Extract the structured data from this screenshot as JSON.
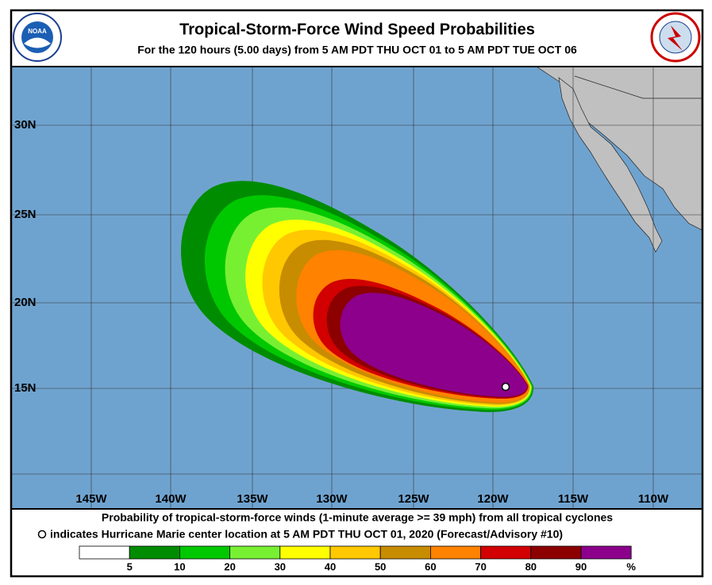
{
  "header": {
    "title": "Tropical-Storm-Force Wind Speed Probabilities",
    "subtitle": "For the 120 hours (5.00 days) from 5 AM PDT THU OCT 01 to 5 AM PDT TUE OCT 06",
    "left_logo": "NOAA"
  },
  "map": {
    "longitudes": [
      "145W",
      "140W",
      "135W",
      "130W",
      "125W",
      "120W",
      "115W",
      "110W"
    ],
    "latitudes": [
      "30N",
      "25N",
      "20N",
      "15N"
    ]
  },
  "caption": {
    "line1": "Probability of tropical-storm-force winds (1-minute average >= 39 mph) from all tropical cyclones",
    "line2": "indicates Hurricane Marie center location at 5 AM PDT THU OCT 01, 2020 (Forecast/Advisory #10)"
  },
  "legend": {
    "colors": [
      "#ffffff",
      "#008c00",
      "#00c800",
      "#78f032",
      "#ffff00",
      "#ffc800",
      "#c88c00",
      "#ff8200",
      "#d20000",
      "#8c0000",
      "#8c008c"
    ],
    "labels": [
      "5",
      "10",
      "20",
      "30",
      "40",
      "50",
      "60",
      "70",
      "80",
      "90",
      "%"
    ]
  }
}
